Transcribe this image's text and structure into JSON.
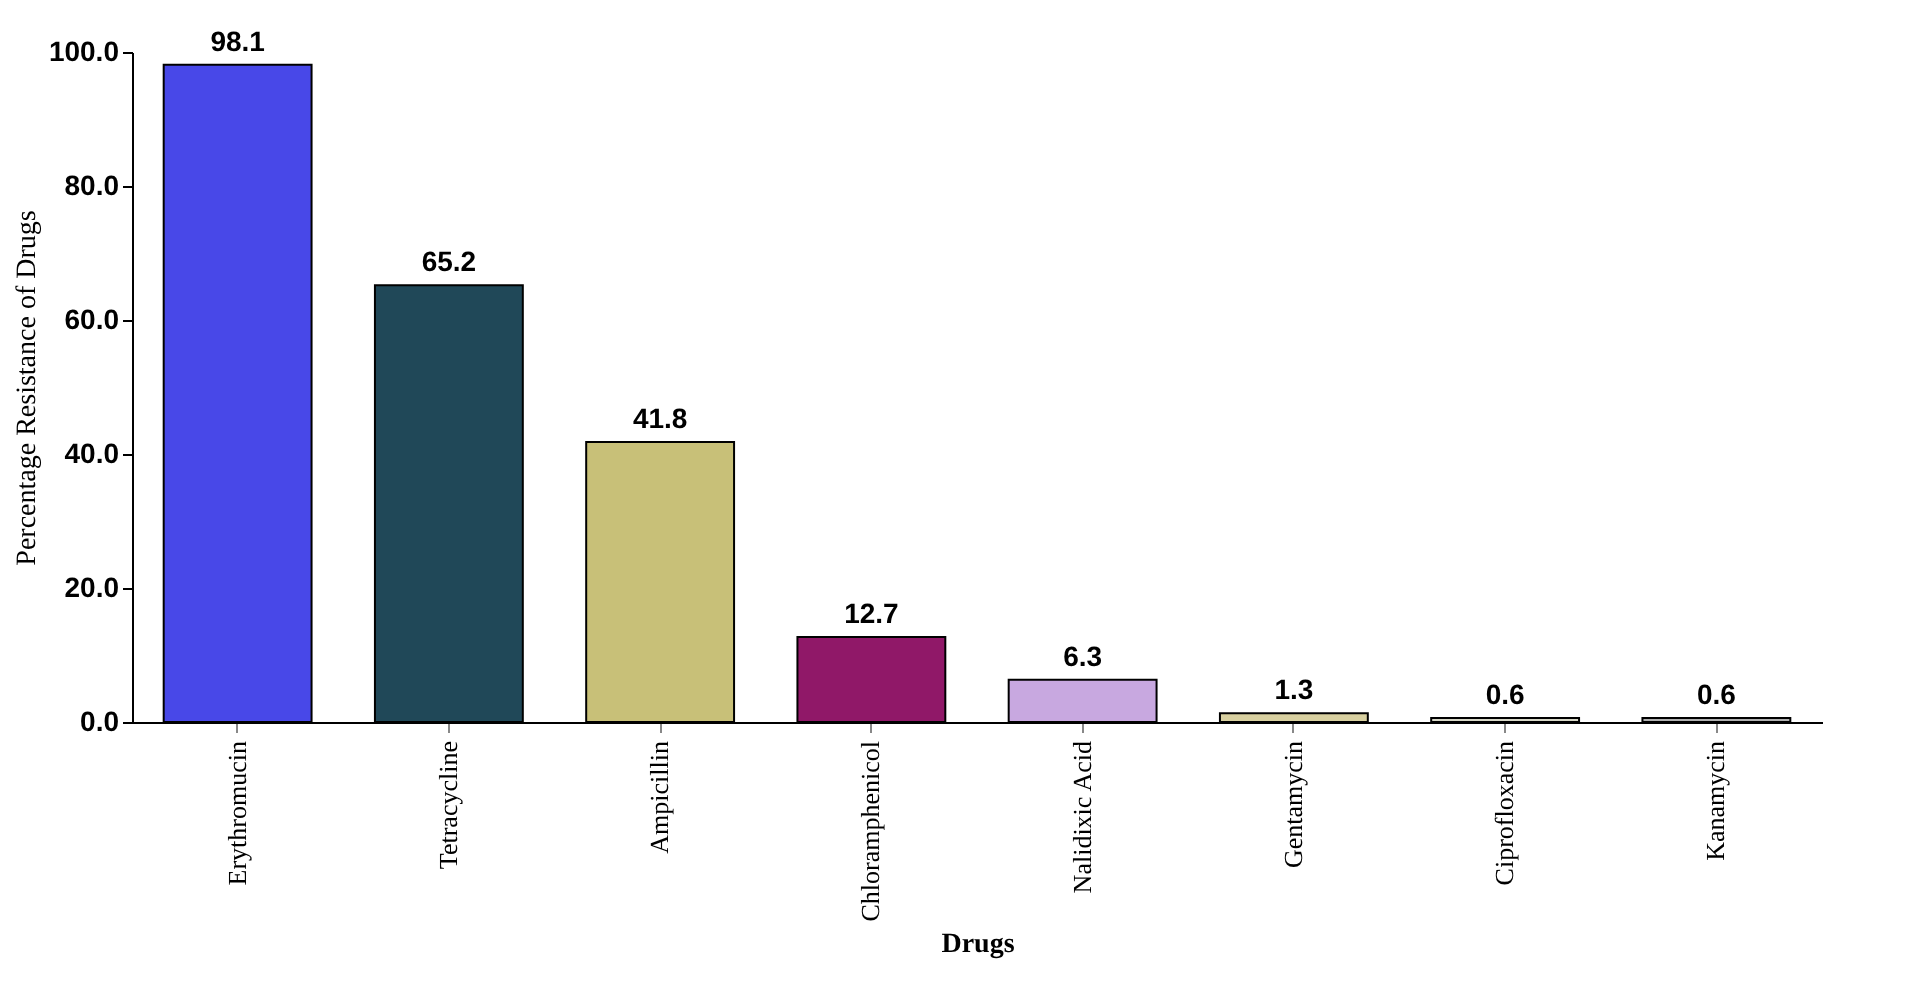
{
  "chart_data": {
    "type": "bar",
    "xlabel": "Drugs",
    "ylabel": "Percentage Resistance of Drugs",
    "categories": [
      "Erythromucin",
      "Tetracycline",
      "Ampicillin",
      "Chloramphenicol",
      "Nalidixic Acid",
      "Gentamycin",
      "Ciprofloxacin",
      "Kanamycin"
    ],
    "values": [
      98.1,
      65.2,
      41.8,
      12.7,
      6.3,
      1.3,
      0.6,
      0.6
    ],
    "colors": [
      "#4848e8",
      "#204858",
      "#c8c078",
      "#901868",
      "#c8a8e0",
      "#d8d0a0",
      "#d8d8c8",
      "#b0b0b0"
    ],
    "ylim": [
      0,
      100
    ],
    "yticks": [
      {
        "value": 0,
        "label": "0.0"
      },
      {
        "value": 20,
        "label": "20.0"
      },
      {
        "value": 40,
        "label": "40.0"
      },
      {
        "value": 60,
        "label": "60.0"
      },
      {
        "value": 80,
        "label": "80.0"
      },
      {
        "value": 100,
        "label": "100.0"
      }
    ],
    "grid": false,
    "data_labels": true
  }
}
